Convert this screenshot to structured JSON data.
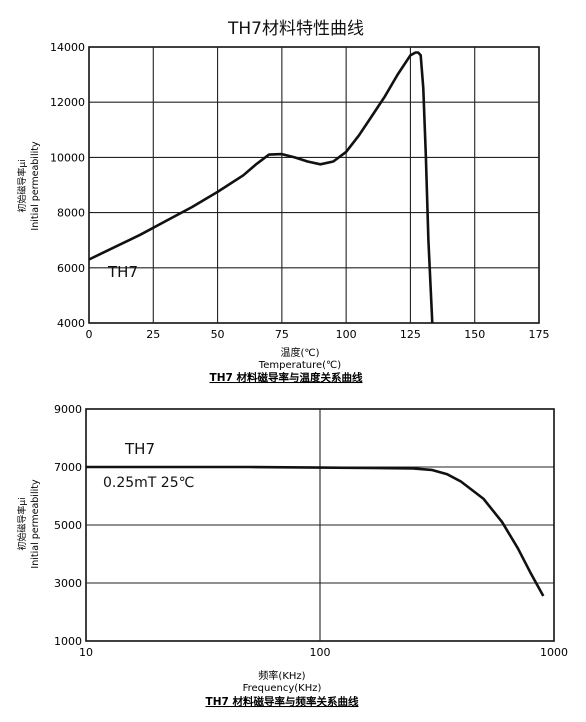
{
  "page_title": "TH7材料特性曲线",
  "chart_data": [
    {
      "type": "line",
      "title": "",
      "caption": "TH7 材料磁导率与温度关系曲线",
      "xlabel_cn": "温度(℃)",
      "xlabel": "Temperature(℃)",
      "ylabel_cn": "初始磁导率μi",
      "ylabel": "Initial permeability",
      "xlim": [
        0,
        175
      ],
      "ylim": [
        4000,
        14000
      ],
      "xscale": "linear",
      "x_ticks": [
        0,
        25,
        50,
        75,
        100,
        125,
        150,
        175
      ],
      "y_ticks": [
        4000,
        6000,
        8000,
        10000,
        12000,
        14000
      ],
      "grid": true,
      "annotations": [
        "TH7"
      ],
      "series": [
        {
          "name": "TH7",
          "x": [
            0,
            10,
            20,
            30,
            40,
            50,
            60,
            65,
            70,
            75,
            80,
            85,
            90,
            95,
            100,
            105,
            110,
            115,
            120,
            125,
            127,
            128,
            129,
            130,
            131,
            132,
            133,
            133.5
          ],
          "y": [
            6300,
            6750,
            7200,
            7700,
            8200,
            8750,
            9350,
            9750,
            10100,
            10120,
            10000,
            9850,
            9750,
            9850,
            10200,
            10800,
            11500,
            12200,
            13000,
            13700,
            13800,
            13800,
            13700,
            12500,
            10000,
            7000,
            5000,
            4000
          ]
        }
      ]
    },
    {
      "type": "line",
      "title": "",
      "caption": "TH7 材料磁导率与频率关系曲线",
      "xlabel_cn": "频率(KHz)",
      "xlabel": "Frequency(KHz)",
      "ylabel_cn": "初始磁导率μi",
      "ylabel": "Initial permeability",
      "xlim": [
        10,
        1000
      ],
      "ylim": [
        1000,
        9000
      ],
      "xscale": "log",
      "x_ticks": [
        10,
        100,
        1000
      ],
      "y_ticks": [
        1000,
        3000,
        5000,
        7000,
        9000
      ],
      "grid": true,
      "annotations": [
        "TH7",
        "0.25mT 25℃"
      ],
      "series": [
        {
          "name": "TH7",
          "x": [
            10,
            20,
            50,
            100,
            200,
            250,
            300,
            350,
            400,
            500,
            600,
            700,
            800,
            900
          ],
          "y": [
            7000,
            7000,
            7000,
            6980,
            6960,
            6950,
            6900,
            6750,
            6500,
            5900,
            5100,
            4200,
            3300,
            2550
          ]
        }
      ]
    }
  ]
}
